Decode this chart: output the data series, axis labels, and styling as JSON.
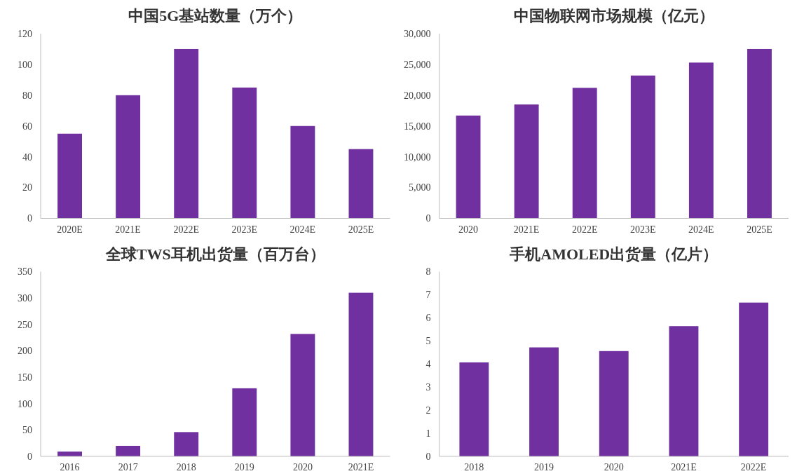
{
  "chart_data": [
    {
      "type": "bar",
      "title": "中国5G基站数量（万个）",
      "categories": [
        "2020E",
        "2021E",
        "2022E",
        "2023E",
        "2024E",
        "2025E"
      ],
      "values": [
        55,
        80,
        110,
        85,
        60,
        45
      ],
      "color": "#7030a0",
      "ylim": [
        0,
        120
      ],
      "yticks": [
        0,
        20,
        40,
        60,
        80,
        100,
        120
      ],
      "grid": false
    },
    {
      "type": "bar",
      "title": "中国物联网市场规模（亿元）",
      "categories": [
        "2020",
        "2021E",
        "2022E",
        "2023E",
        "2024E",
        "2025E"
      ],
      "values": [
        16700,
        18500,
        21200,
        23200,
        25300,
        27500
      ],
      "color": "#7030a0",
      "ylim": [
        0,
        30000
      ],
      "yticks": [
        {
          "value": 0,
          "label": "0"
        },
        {
          "value": 5000,
          "label": "5,000"
        },
        {
          "value": 10000,
          "label": "10,000"
        },
        {
          "value": 15000,
          "label": "15,000"
        },
        {
          "value": 20000,
          "label": "20,000"
        },
        {
          "value": 25000,
          "label": "25,000"
        },
        {
          "value": 30000,
          "label": "30,000"
        }
      ],
      "grid": false
    },
    {
      "type": "bar",
      "title": "全球TWS耳机出货量（百万台）",
      "categories": [
        "2016",
        "2017",
        "2018",
        "2019",
        "2020",
        "2021E"
      ],
      "values": [
        9,
        20,
        46,
        129,
        232,
        310
      ],
      "color": "#7030a0",
      "ylim": [
        0,
        350
      ],
      "yticks": [
        0,
        50,
        100,
        150,
        200,
        250,
        300,
        350
      ],
      "grid": false
    },
    {
      "type": "bar",
      "title": "手机AMOLED出货量（亿片）",
      "categories": [
        "2018",
        "2019",
        "2020",
        "2021E",
        "2022E"
      ],
      "values": [
        4.07,
        4.72,
        4.56,
        5.64,
        6.66
      ],
      "color": "#7030a0",
      "ylim": [
        0,
        8
      ],
      "yticks": [
        0,
        1,
        2,
        3,
        4,
        5,
        6,
        7,
        8
      ],
      "grid": false
    }
  ]
}
